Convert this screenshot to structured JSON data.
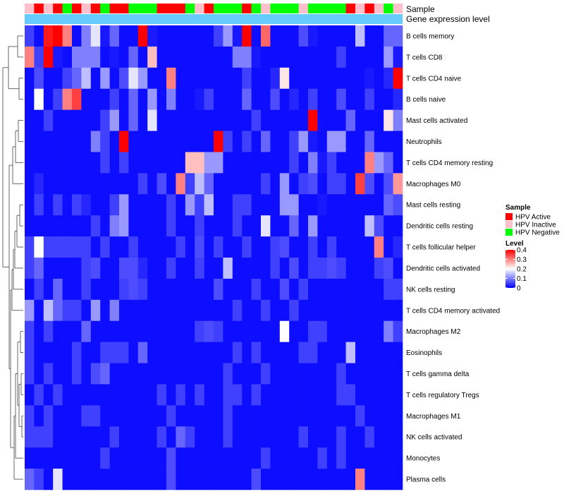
{
  "chart_data": {
    "type": "heatmap",
    "title": "",
    "annotation_rows": [
      "Sample",
      "Gene expression level"
    ],
    "rows": [
      "B cells memory",
      "T cells CD8",
      "T cells CD4 naive",
      "B cells naive",
      "Mast cells activated",
      "Neutrophils",
      "T cells CD4 memory resting",
      "Macrophages M0",
      "Mast cells resting",
      "Dendritic cells resting",
      "T cells follicular helper",
      "Dendritic cells activated",
      "NK cells resting",
      "T cells CD4 memory activated",
      "Macrophages M2",
      "Eosinophils",
      "T cells gamma delta",
      "T cells regulatory  Tregs",
      "Macrophages M1",
      "NK cells activated",
      "Monocytes",
      "Plasma cells"
    ],
    "sample_groups": [
      "Inactive",
      "Active",
      "Inactive",
      "Active",
      "Negative",
      "Active",
      "Inactive",
      "Active",
      "Negative",
      "Active",
      "Active",
      "Negative",
      "Negative",
      "Negative",
      "Active",
      "Active",
      "Active",
      "Negative",
      "Inactive",
      "Active",
      "Negative",
      "Negative",
      "Negative",
      "Active",
      "Negative",
      "Inactive",
      "Negative",
      "Negative",
      "Negative",
      "Inactive",
      "Negative",
      "Negative",
      "Negative",
      "Negative",
      "Active",
      "Inactive",
      "Active",
      "Inactive",
      "Negative",
      "Inactive"
    ],
    "values": [
      [
        0.05,
        0.01,
        0.38,
        0.4,
        0.3,
        0.01,
        0.1,
        0.18,
        0.02,
        0.08,
        0.01,
        0.01,
        0.4,
        0.02,
        0.01,
        0.01,
        0.01,
        0.01,
        0.01,
        0.01,
        0.05,
        0.12,
        0.02,
        0.4,
        0.01,
        0.32,
        0.01,
        0.01,
        0.01,
        0.06,
        0.02,
        0.01,
        0.01,
        0.01,
        0.01,
        0.15,
        0.01,
        0.01,
        0.08,
        0.08
      ],
      [
        0.3,
        0.05,
        0.4,
        0.02,
        0.01,
        0.1,
        0.1,
        0.1,
        0.01,
        0.02,
        0.01,
        0.08,
        0.01,
        0.25,
        0.01,
        0.01,
        0.01,
        0.01,
        0.01,
        0.01,
        0.01,
        0.01,
        0.1,
        0.1,
        0.02,
        0.01,
        0.01,
        0.01,
        0.01,
        0.01,
        0.01,
        0.01,
        0.01,
        0.05,
        0.01,
        0.01,
        0.01,
        0.01,
        0.12,
        0.02
      ],
      [
        0.01,
        0.06,
        0.01,
        0.01,
        0.05,
        0.08,
        0.15,
        0.01,
        0.12,
        0.01,
        0.06,
        0.18,
        0.12,
        0.01,
        0.01,
        0.3,
        0.01,
        0.01,
        0.01,
        0.01,
        0.01,
        0.01,
        0.01,
        0.05,
        0.01,
        0.01,
        0.03,
        0.22,
        0.01,
        0.01,
        0.01,
        0.01,
        0.01,
        0.01,
        0.01,
        0.01,
        0.02,
        0.01,
        0.03,
        0.4
      ],
      [
        0.01,
        0.2,
        0.01,
        0.05,
        0.3,
        0.35,
        0.01,
        0.01,
        0.01,
        0.05,
        0.01,
        0.08,
        0.01,
        0.12,
        0.01,
        0.1,
        0.01,
        0.01,
        0.02,
        0.05,
        0.01,
        0.01,
        0.01,
        0.08,
        0.01,
        0.01,
        0.06,
        0.01,
        0.03,
        0.01,
        0.05,
        0.01,
        0.01,
        0.06,
        0.01,
        0.01,
        0.05,
        0.01,
        0.01,
        0.03
      ],
      [
        0.01,
        0.01,
        0.05,
        0.01,
        0.01,
        0.01,
        0.01,
        0.01,
        0.05,
        0.12,
        0.01,
        0.08,
        0.01,
        0.18,
        0.01,
        0.01,
        0.01,
        0.01,
        0.01,
        0.01,
        0.01,
        0.01,
        0.01,
        0.01,
        0.05,
        0.01,
        0.01,
        0.01,
        0.01,
        0.01,
        0.4,
        0.01,
        0.01,
        0.01,
        0.08,
        0.01,
        0.01,
        0.01,
        0.22,
        0.1
      ],
      [
        0.01,
        0.01,
        0.01,
        0.01,
        0.01,
        0.01,
        0.01,
        0.1,
        0.05,
        0.01,
        0.4,
        0.01,
        0.01,
        0.01,
        0.01,
        0.01,
        0.01,
        0.01,
        0.01,
        0.01,
        0.4,
        0.05,
        0.01,
        0.05,
        0.01,
        0.08,
        0.01,
        0.01,
        0.05,
        0.12,
        0.02,
        0.01,
        0.12,
        0.12,
        0.01,
        0.01,
        0.08,
        0.01,
        0.01,
        0.01
      ],
      [
        0.01,
        0.01,
        0.01,
        0.01,
        0.01,
        0.01,
        0.01,
        0.01,
        0.05,
        0.01,
        0.05,
        0.01,
        0.01,
        0.01,
        0.01,
        0.01,
        0.01,
        0.25,
        0.25,
        0.12,
        0.12,
        0.01,
        0.01,
        0.01,
        0.01,
        0.01,
        0.01,
        0.01,
        0.05,
        0.01,
        0.1,
        0.02,
        0.05,
        0.01,
        0.01,
        0.01,
        0.3,
        0.12,
        0.08,
        0.01
      ],
      [
        0.01,
        0.03,
        0.01,
        0.01,
        0.01,
        0.01,
        0.01,
        0.01,
        0.01,
        0.01,
        0.01,
        0.01,
        0.05,
        0.01,
        0.06,
        0.01,
        0.3,
        0.05,
        0.15,
        0.08,
        0.01,
        0.01,
        0.01,
        0.01,
        0.01,
        0.05,
        0.01,
        0.12,
        0.01,
        0.05,
        0.06,
        0.01,
        0.05,
        0.05,
        0.01,
        0.35,
        0.06,
        0.01,
        0.06,
        0.28
      ],
      [
        0.01,
        0.05,
        0.01,
        0.05,
        0.01,
        0.05,
        0.03,
        0.01,
        0.01,
        0.05,
        0.12,
        0.01,
        0.01,
        0.01,
        0.01,
        0.05,
        0.01,
        0.12,
        0.05,
        0.15,
        0.01,
        0.01,
        0.05,
        0.05,
        0.01,
        0.01,
        0.01,
        0.12,
        0.12,
        0.01,
        0.01,
        0.02,
        0.01,
        0.01,
        0.01,
        0.01,
        0.01,
        0.01,
        0.08,
        0.06
      ],
      [
        0.01,
        0.01,
        0.01,
        0.01,
        0.01,
        0.01,
        0.01,
        0.05,
        0.01,
        0.1,
        0.12,
        0.01,
        0.01,
        0.01,
        0.01,
        0.05,
        0.01,
        0.01,
        0.05,
        0.01,
        0.01,
        0.01,
        0.05,
        0.01,
        0.01,
        0.18,
        0.01,
        0.01,
        0.08,
        0.01,
        0.12,
        0.01,
        0.01,
        0.01,
        0.01,
        0.01,
        0.15,
        0.06,
        0.01,
        0.01
      ],
      [
        0.05,
        0.2,
        0.05,
        0.05,
        0.05,
        0.05,
        0.05,
        0.01,
        0.05,
        0.01,
        0.01,
        0.05,
        0.01,
        0.01,
        0.01,
        0.01,
        0.05,
        0.01,
        0.06,
        0.01,
        0.05,
        0.01,
        0.01,
        0.05,
        0.01,
        0.01,
        0.05,
        0.06,
        0.01,
        0.01,
        0.05,
        0.01,
        0.05,
        0.01,
        0.01,
        0.01,
        0.01,
        0.3,
        0.01,
        0.03
      ],
      [
        0.05,
        0.08,
        0.01,
        0.01,
        0.01,
        0.01,
        0.05,
        0.06,
        0.01,
        0.01,
        0.06,
        0.06,
        0.03,
        0.01,
        0.01,
        0.05,
        0.01,
        0.01,
        0.05,
        0.01,
        0.01,
        0.15,
        0.01,
        0.01,
        0.01,
        0.01,
        0.05,
        0.01,
        0.06,
        0.01,
        0.05,
        0.05,
        0.06,
        0.05,
        0.01,
        0.01,
        0.01,
        0.05,
        0.06,
        0.01
      ],
      [
        0.01,
        0.05,
        0.01,
        0.08,
        0.01,
        0.01,
        0.05,
        0.01,
        0.01,
        0.01,
        0.05,
        0.06,
        0.05,
        0.01,
        0.01,
        0.01,
        0.01,
        0.01,
        0.01,
        0.01,
        0.06,
        0.01,
        0.01,
        0.01,
        0.05,
        0.01,
        0.01,
        0.06,
        0.01,
        0.05,
        0.01,
        0.01,
        0.01,
        0.01,
        0.01,
        0.01,
        0.01,
        0.01,
        0.05,
        0.05
      ],
      [
        0.12,
        0.01,
        0.15,
        0.08,
        0.05,
        0.05,
        0.01,
        0.12,
        0.01,
        0.1,
        0.01,
        0.01,
        0.01,
        0.01,
        0.01,
        0.01,
        0.01,
        0.01,
        0.01,
        0.01,
        0.01,
        0.01,
        0.05,
        0.01,
        0.01,
        0.05,
        0.01,
        0.01,
        0.05,
        0.01,
        0.01,
        0.01,
        0.01,
        0.01,
        0.01,
        0.01,
        0.01,
        0.01,
        0.01,
        0.01
      ],
      [
        0.05,
        0.01,
        0.05,
        0.01,
        0.01,
        0.01,
        0.08,
        0.01,
        0.01,
        0.01,
        0.01,
        0.01,
        0.01,
        0.01,
        0.01,
        0.01,
        0.01,
        0.01,
        0.05,
        0.06,
        0.05,
        0.01,
        0.01,
        0.01,
        0.01,
        0.01,
        0.01,
        0.2,
        0.01,
        0.01,
        0.05,
        0.05,
        0.01,
        0.01,
        0.01,
        0.01,
        0.01,
        0.01,
        0.1,
        0.05
      ],
      [
        0.05,
        0.01,
        0.01,
        0.01,
        0.01,
        0.05,
        0.01,
        0.01,
        0.05,
        0.05,
        0.05,
        0.01,
        0.08,
        0.01,
        0.01,
        0.01,
        0.01,
        0.01,
        0.01,
        0.01,
        0.01,
        0.01,
        0.05,
        0.01,
        0.05,
        0.01,
        0.01,
        0.01,
        0.01,
        0.05,
        0.05,
        0.01,
        0.01,
        0.01,
        0.15,
        0.01,
        0.01,
        0.01,
        0.01,
        0.01
      ],
      [
        0.05,
        0.01,
        0.05,
        0.01,
        0.01,
        0.05,
        0.01,
        0.06,
        0.08,
        0.01,
        0.01,
        0.01,
        0.01,
        0.01,
        0.01,
        0.01,
        0.01,
        0.01,
        0.01,
        0.01,
        0.01,
        0.05,
        0.01,
        0.01,
        0.01,
        0.05,
        0.01,
        0.01,
        0.01,
        0.01,
        0.01,
        0.01,
        0.01,
        0.05,
        0.01,
        0.01,
        0.01,
        0.01,
        0.01,
        0.01
      ],
      [
        0.01,
        0.05,
        0.01,
        0.05,
        0.01,
        0.01,
        0.01,
        0.01,
        0.01,
        0.01,
        0.01,
        0.01,
        0.01,
        0.01,
        0.05,
        0.01,
        0.05,
        0.01,
        0.05,
        0.01,
        0.01,
        0.05,
        0.05,
        0.01,
        0.05,
        0.01,
        0.01,
        0.01,
        0.01,
        0.01,
        0.01,
        0.01,
        0.01,
        0.05,
        0.05,
        0.01,
        0.01,
        0.01,
        0.01,
        0.01
      ],
      [
        0.05,
        0.01,
        0.05,
        0.01,
        0.01,
        0.01,
        0.05,
        0.05,
        0.01,
        0.01,
        0.01,
        0.01,
        0.01,
        0.01,
        0.01,
        0.05,
        0.01,
        0.01,
        0.01,
        0.01,
        0.01,
        0.05,
        0.01,
        0.01,
        0.01,
        0.01,
        0.01,
        0.01,
        0.01,
        0.01,
        0.01,
        0.01,
        0.01,
        0.01,
        0.01,
        0.05,
        0.01,
        0.01,
        0.01,
        0.01
      ],
      [
        0.05,
        0.05,
        0.05,
        0.01,
        0.01,
        0.01,
        0.01,
        0.01,
        0.01,
        0.05,
        0.01,
        0.01,
        0.01,
        0.01,
        0.05,
        0.01,
        0.08,
        0.05,
        0.01,
        0.01,
        0.01,
        0.05,
        0.01,
        0.01,
        0.01,
        0.01,
        0.01,
        0.01,
        0.01,
        0.05,
        0.01,
        0.01,
        0.01,
        0.05,
        0.01,
        0.01,
        0.05,
        0.01,
        0.01,
        0.01
      ],
      [
        0.01,
        0.01,
        0.01,
        0.01,
        0.01,
        0.01,
        0.01,
        0.01,
        0.05,
        0.01,
        0.01,
        0.01,
        0.01,
        0.01,
        0.01,
        0.06,
        0.01,
        0.01,
        0.01,
        0.01,
        0.01,
        0.01,
        0.01,
        0.01,
        0.01,
        0.05,
        0.01,
        0.01,
        0.01,
        0.01,
        0.01,
        0.05,
        0.01,
        0.05,
        0.01,
        0.01,
        0.01,
        0.01,
        0.01,
        0.01
      ],
      [
        0.08,
        0.05,
        0.01,
        0.18,
        0.01,
        0.01,
        0.01,
        0.01,
        0.01,
        0.01,
        0.01,
        0.01,
        0.01,
        0.01,
        0.01,
        0.06,
        0.01,
        0.01,
        0.01,
        0.01,
        0.01,
        0.01,
        0.01,
        0.01,
        0.06,
        0.01,
        0.01,
        0.01,
        0.01,
        0.01,
        0.01,
        0.01,
        0.01,
        0.01,
        0.01,
        0.3,
        0.01,
        0.01,
        0.01,
        0.01
      ]
    ],
    "legend": {
      "sample_title": "Sample",
      "sample_entries": [
        {
          "label": "HPV Active",
          "key": "Active",
          "color": "#ff0000"
        },
        {
          "label": "HPV Inactive",
          "key": "Inactive",
          "color": "#ffc0cb"
        },
        {
          "label": "HPV Negative",
          "key": "Negative",
          "color": "#00ff00"
        }
      ],
      "level_title": "Level",
      "level_ticks": [
        0,
        0.1,
        0.2,
        0.3,
        0.4
      ],
      "level_tick_labels": [
        "0",
        "0.1",
        "0.2",
        "0.3",
        "0.4"
      ],
      "level_range": [
        0,
        0.4
      ],
      "level_colors": {
        "low": "#0000ff",
        "mid": "#ffffff",
        "high": "#ff0000"
      }
    },
    "gene_expression_color": "#66ccff"
  }
}
